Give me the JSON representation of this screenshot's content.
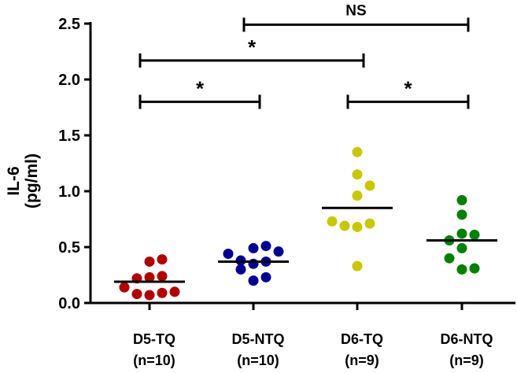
{
  "chart_data": {
    "type": "scatter",
    "title": "",
    "xlabel": "",
    "ylabel": [
      "IL-6",
      "(pg/ml)"
    ],
    "ylim": [
      0,
      2.5
    ],
    "yticks": [
      "0.0",
      "0.5",
      "1.0",
      "1.5",
      "2.0",
      "2.5"
    ],
    "grid": false,
    "categories": [
      {
        "name": "D5-TQ",
        "n": "(n=10)"
      },
      {
        "name": "D5-NTQ",
        "n": "(n=10)"
      },
      {
        "name": "D6-TQ",
        "n": "(n=9)"
      },
      {
        "name": "D6-NTQ",
        "n": "(n=9)"
      }
    ],
    "series": [
      {
        "name": "D5-TQ",
        "color": "#b00000",
        "mean": 0.19,
        "values": [
          0.39,
          0.37,
          0.24,
          0.23,
          0.22,
          0.14,
          0.1,
          0.09,
          0.07,
          0.08
        ]
      },
      {
        "name": "D5-NTQ",
        "color": "#000090",
        "mean": 0.37,
        "values": [
          0.51,
          0.49,
          0.46,
          0.44,
          0.38,
          0.37,
          0.35,
          0.3,
          0.23,
          0.2
        ]
      },
      {
        "name": "D6-TQ",
        "color": "#c8c800",
        "mean": 0.85,
        "values": [
          1.35,
          1.15,
          1.05,
          0.96,
          0.73,
          0.71,
          0.69,
          0.68,
          0.33
        ]
      },
      {
        "name": "D6-NTQ",
        "color": "#008000",
        "mean": 0.56,
        "values": [
          0.92,
          0.79,
          0.62,
          0.61,
          0.56,
          0.49,
          0.4,
          0.31,
          0.3
        ]
      }
    ],
    "annotations": [
      {
        "from": 1,
        "to": 3,
        "label": "NS",
        "level": 2.49
      },
      {
        "from": 0,
        "to": 2,
        "label": "*",
        "level": 2.17
      },
      {
        "from": 0,
        "to": 1,
        "label": "*",
        "level": 1.8
      },
      {
        "from": 2,
        "to": 3,
        "label": "*",
        "level": 1.8
      }
    ]
  }
}
